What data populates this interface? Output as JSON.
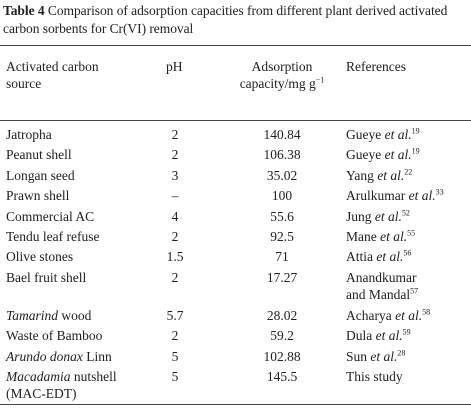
{
  "caption": {
    "label": "Table 4",
    "text": "Comparison of adsorption capacities from different plant derived activated carbon sorbents for Cr(VI) removal"
  },
  "headers": {
    "source_line1": "Activated carbon",
    "source_line2": "source",
    "ph": "pH",
    "capacity_line1": "Adsorption",
    "capacity_line2": "capacity/mg g",
    "capacity_sup": "−1",
    "references": "References"
  },
  "rows": [
    {
      "source_italic": "",
      "source": "Jatropha",
      "ph": "2",
      "capacity": "140.84",
      "ref_author": "Gueye",
      "ref_etal": "et al.",
      "ref_sup": "19"
    },
    {
      "source_italic": "",
      "source": "Peanut shell",
      "ph": "2",
      "capacity": "106.38",
      "ref_author": "Gueye",
      "ref_etal": "et al.",
      "ref_sup": "19"
    },
    {
      "source_italic": "",
      "source": "Longan seed",
      "ph": "3",
      "capacity": "35.02",
      "ref_author": "Yang",
      "ref_etal": "et al.",
      "ref_sup": "22"
    },
    {
      "source_italic": "",
      "source": "Prawn shell",
      "ph": "–",
      "capacity": "100",
      "ref_author": "Arulkumar",
      "ref_etal": "et al.",
      "ref_sup": "33"
    },
    {
      "source_italic": "",
      "source": "Commercial AC",
      "ph": "4",
      "capacity": "55.6",
      "ref_author": "Jung",
      "ref_etal": "et al.",
      "ref_sup": "52"
    },
    {
      "source_italic": "",
      "source": "Tendu leaf refuse",
      "ph": "2",
      "capacity": "92.5",
      "ref_author": "Mane",
      "ref_etal": "et al.",
      "ref_sup": "55"
    },
    {
      "source_italic": "",
      "source": "Olive stones",
      "ph": "1.5",
      "capacity": "71",
      "ref_author": "Attia",
      "ref_etal": "et al.",
      "ref_sup": "56"
    },
    {
      "source_italic": "",
      "source": "Bael fruit shell",
      "ph": "2",
      "capacity": "17.27",
      "ref_line1": "Anandkumar",
      "ref_line2": "and Mandal",
      "ref_sup": "57"
    },
    {
      "source_italic": "Tamarind",
      "source": " wood",
      "ph": "5.7",
      "capacity": "28.02",
      "ref_author": "Acharya",
      "ref_etal": "et al.",
      "ref_sup": "58"
    },
    {
      "source_italic": "",
      "source": "Waste of Bamboo",
      "ph": "2",
      "capacity": "59.2",
      "ref_author": "Dula",
      "ref_etal": "et al.",
      "ref_sup": "59"
    },
    {
      "source_italic": "Arundo donax",
      "source": " Linn",
      "ph": "5",
      "capacity": "102.88",
      "ref_author": "Sun",
      "ref_etal": "et al.",
      "ref_sup": "28"
    },
    {
      "source_italic": "Macadamia",
      "source": " nutshell",
      "source_line2": "(MAC-EDT)",
      "ph": "5",
      "capacity": "145.5",
      "ref_plain": "This study"
    }
  ]
}
